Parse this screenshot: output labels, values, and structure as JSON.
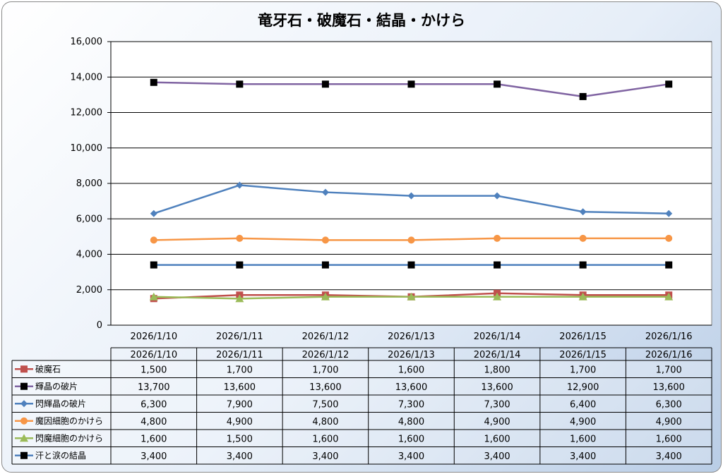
{
  "chart_data": {
    "type": "line",
    "title": "竜牙石・破魔石・結晶・かけら",
    "categories": [
      "2026/1/10",
      "2026/1/11",
      "2026/1/12",
      "2026/1/13",
      "2026/1/14",
      "2026/1/15",
      "2026/1/16"
    ],
    "ylim": [
      0,
      16000
    ],
    "y_ticks": [
      "0",
      "2,000",
      "4,000",
      "6,000",
      "8,000",
      "10,000",
      "12,000",
      "14,000",
      "16,000"
    ],
    "grid": "horizontal",
    "legend": "data-table",
    "series": [
      {
        "name": "破魔石",
        "color": "#c0504d",
        "marker": "square",
        "values": [
          1500,
          1700,
          1700,
          1600,
          1800,
          1700,
          1700
        ],
        "labels": [
          "1,500",
          "1,700",
          "1,700",
          "1,600",
          "1,800",
          "1,700",
          "1,700"
        ]
      },
      {
        "name": "輝晶の破片",
        "color": "#8064a2",
        "marker_color": "#000000",
        "marker": "square",
        "values": [
          13700,
          13600,
          13600,
          13600,
          13600,
          12900,
          13600
        ],
        "labels": [
          "13,700",
          "13,600",
          "13,600",
          "13,600",
          "13,600",
          "12,900",
          "13,600"
        ]
      },
      {
        "name": "閃輝晶の破片",
        "color": "#4f81bd",
        "marker": "diamond",
        "values": [
          6300,
          7900,
          7500,
          7300,
          7300,
          6400,
          6300
        ],
        "labels": [
          "6,300",
          "7,900",
          "7,500",
          "7,300",
          "7,300",
          "6,400",
          "6,300"
        ]
      },
      {
        "name": "魔因細胞のかけら",
        "color": "#f79646",
        "marker": "circle",
        "values": [
          4800,
          4900,
          4800,
          4800,
          4900,
          4900,
          4900
        ],
        "labels": [
          "4,800",
          "4,900",
          "4,800",
          "4,800",
          "4,900",
          "4,900",
          "4,900"
        ]
      },
      {
        "name": "閃魔細胞のかけら",
        "color": "#9bbb59",
        "marker": "triangle",
        "values": [
          1600,
          1500,
          1600,
          1600,
          1600,
          1600,
          1600
        ],
        "labels": [
          "1,600",
          "1,500",
          "1,600",
          "1,600",
          "1,600",
          "1,600",
          "1,600"
        ]
      },
      {
        "name": "汗と涙の結晶",
        "color": "#4f81bd",
        "marker_color": "#000000",
        "marker": "square",
        "values": [
          3400,
          3400,
          3400,
          3400,
          3400,
          3400,
          3400
        ],
        "labels": [
          "3,400",
          "3,400",
          "3,400",
          "3,400",
          "3,400",
          "3,400",
          "3,400"
        ]
      }
    ]
  }
}
